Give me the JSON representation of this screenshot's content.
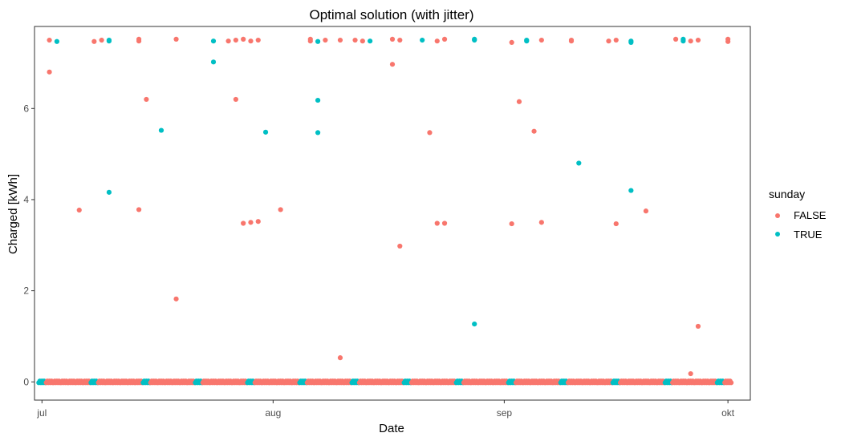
{
  "chart_data": {
    "type": "scatter",
    "title": "Optimal solution (with jitter)",
    "xlabel": "Date",
    "ylabel": "Charged [kWh]",
    "x_type": "date",
    "xlim": [
      "2018-06-30",
      "2018-10-04"
    ],
    "ylim": [
      -0.4,
      7.8
    ],
    "x_ticks": [
      {
        "date": "2018-07-01",
        "label": "jul"
      },
      {
        "date": "2018-08-01",
        "label": "aug"
      },
      {
        "date": "2018-09-01",
        "label": "sep"
      },
      {
        "date": "2018-10-01",
        "label": "okt"
      }
    ],
    "y_ticks": [
      0,
      2,
      4,
      6
    ],
    "grid": false,
    "legend": {
      "title": "sunday",
      "position": "right"
    },
    "series": [
      {
        "name": "FALSE",
        "color": "#F8766D",
        "points": [
          {
            "x": "2018-07-02",
            "y": 7.5
          },
          {
            "x": "2018-07-02",
            "y": 6.8
          },
          {
            "x": "2018-07-06",
            "y": 3.77
          },
          {
            "x": "2018-07-08",
            "y": 7.47
          },
          {
            "x": "2018-07-09",
            "y": 7.5
          },
          {
            "x": "2018-07-14",
            "y": 7.48
          },
          {
            "x": "2018-07-14",
            "y": 7.52
          },
          {
            "x": "2018-07-15",
            "y": 6.2
          },
          {
            "x": "2018-07-14",
            "y": 3.78
          },
          {
            "x": "2018-07-19",
            "y": 7.52
          },
          {
            "x": "2018-07-19",
            "y": 1.82
          },
          {
            "x": "2018-07-26",
            "y": 7.48
          },
          {
            "x": "2018-07-27",
            "y": 7.5
          },
          {
            "x": "2018-07-28",
            "y": 7.52
          },
          {
            "x": "2018-07-27",
            "y": 6.2
          },
          {
            "x": "2018-07-28",
            "y": 3.48
          },
          {
            "x": "2018-07-29",
            "y": 3.5
          },
          {
            "x": "2018-07-29",
            "y": 7.48
          },
          {
            "x": "2018-07-30",
            "y": 7.5
          },
          {
            "x": "2018-07-30",
            "y": 3.52
          },
          {
            "x": "2018-08-02",
            "y": 3.78
          },
          {
            "x": "2018-08-06",
            "y": 7.52
          },
          {
            "x": "2018-08-06",
            "y": 7.48
          },
          {
            "x": "2018-08-08",
            "y": 7.5
          },
          {
            "x": "2018-08-10",
            "y": 7.5
          },
          {
            "x": "2018-08-10",
            "y": 0.53
          },
          {
            "x": "2018-08-12",
            "y": 7.5
          },
          {
            "x": "2018-08-13",
            "y": 7.48
          },
          {
            "x": "2018-08-17",
            "y": 7.52
          },
          {
            "x": "2018-08-17",
            "y": 6.97
          },
          {
            "x": "2018-08-18",
            "y": 7.5
          },
          {
            "x": "2018-08-18",
            "y": 2.98
          },
          {
            "x": "2018-08-22",
            "y": 5.47
          },
          {
            "x": "2018-08-23",
            "y": 7.48
          },
          {
            "x": "2018-08-23",
            "y": 3.48
          },
          {
            "x": "2018-08-24",
            "y": 7.52
          },
          {
            "x": "2018-08-24",
            "y": 3.48
          },
          {
            "x": "2018-09-02",
            "y": 7.45
          },
          {
            "x": "2018-09-02",
            "y": 3.47
          },
          {
            "x": "2018-09-03",
            "y": 6.15
          },
          {
            "x": "2018-09-05",
            "y": 5.5
          },
          {
            "x": "2018-09-06",
            "y": 7.5
          },
          {
            "x": "2018-09-06",
            "y": 3.5
          },
          {
            "x": "2018-09-10",
            "y": 7.5
          },
          {
            "x": "2018-09-10",
            "y": 7.48
          },
          {
            "x": "2018-09-15",
            "y": 7.48
          },
          {
            "x": "2018-09-16",
            "y": 7.5
          },
          {
            "x": "2018-09-16",
            "y": 3.47
          },
          {
            "x": "2018-09-20",
            "y": 3.75
          },
          {
            "x": "2018-09-24",
            "y": 7.52
          },
          {
            "x": "2018-09-25",
            "y": 7.5
          },
          {
            "x": "2018-09-26",
            "y": 7.48
          },
          {
            "x": "2018-09-26",
            "y": 0.18
          },
          {
            "x": "2018-09-27",
            "y": 7.5
          },
          {
            "x": "2018-09-27",
            "y": 1.22
          },
          {
            "x": "2018-10-01",
            "y": 7.52
          },
          {
            "x": "2018-10-01",
            "y": 7.47
          }
        ]
      },
      {
        "name": "TRUE",
        "color": "#00BFC4",
        "points": [
          {
            "x": "2018-07-03",
            "y": 7.47
          },
          {
            "x": "2018-07-10",
            "y": 7.5
          },
          {
            "x": "2018-07-10",
            "y": 7.48
          },
          {
            "x": "2018-07-10",
            "y": 4.16
          },
          {
            "x": "2018-07-17",
            "y": 5.52
          },
          {
            "x": "2018-07-24",
            "y": 7.48
          },
          {
            "x": "2018-07-24",
            "y": 7.02
          },
          {
            "x": "2018-07-31",
            "y": 5.48
          },
          {
            "x": "2018-08-07",
            "y": 7.47
          },
          {
            "x": "2018-08-07",
            "y": 6.18
          },
          {
            "x": "2018-08-07",
            "y": 5.47
          },
          {
            "x": "2018-08-14",
            "y": 7.48
          },
          {
            "x": "2018-08-21",
            "y": 7.5
          },
          {
            "x": "2018-08-28",
            "y": 7.52
          },
          {
            "x": "2018-08-28",
            "y": 7.5
          },
          {
            "x": "2018-08-28",
            "y": 1.27
          },
          {
            "x": "2018-09-04",
            "y": 7.48
          },
          {
            "x": "2018-09-04",
            "y": 7.5
          },
          {
            "x": "2018-09-11",
            "y": 4.8
          },
          {
            "x": "2018-09-18",
            "y": 7.48
          },
          {
            "x": "2018-09-18",
            "y": 7.45
          },
          {
            "x": "2018-09-18",
            "y": 4.2
          },
          {
            "x": "2018-09-25",
            "y": 7.48
          },
          {
            "x": "2018-09-25",
            "y": 7.52
          }
        ]
      }
    ],
    "baseline": {
      "y": 0,
      "start": "2018-07-01",
      "end": "2018-10-01",
      "true_weekday": 0,
      "colors": {
        "FALSE": "#F8766D",
        "TRUE": "#00BFC4"
      }
    }
  }
}
